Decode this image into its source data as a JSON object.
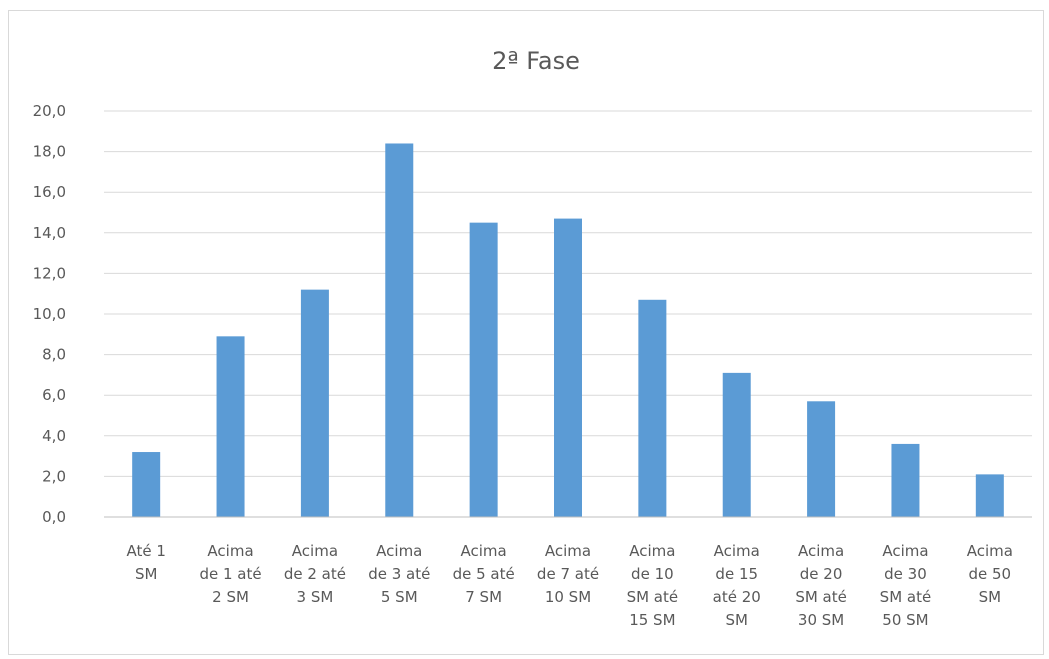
{
  "chart_data": {
    "type": "bar",
    "title": "2ª Fase",
    "xlabel": "",
    "ylabel": "",
    "ylim": [
      0,
      20
    ],
    "yticks": [
      "0,0",
      "2,0",
      "4,0",
      "6,0",
      "8,0",
      "10,0",
      "12,0",
      "14,0",
      "16,0",
      "18,0",
      "20,0"
    ],
    "grid": true,
    "legend": "none",
    "bar_color": "#5b9bd5",
    "categories": [
      [
        "Até 1",
        "SM"
      ],
      [
        "Acima",
        "de 1 até",
        "2 SM"
      ],
      [
        "Acima",
        "de 2 até",
        "3 SM"
      ],
      [
        "Acima",
        "de 3 até",
        "5 SM"
      ],
      [
        "Acima",
        "de 5 até",
        "7 SM"
      ],
      [
        "Acima",
        "de 7 até",
        "10 SM"
      ],
      [
        "Acima",
        "de 10",
        "SM até",
        "15 SM"
      ],
      [
        "Acima",
        "de 15",
        "até 20",
        "SM"
      ],
      [
        "Acima",
        "de 20",
        "SM até",
        "30 SM"
      ],
      [
        "Acima",
        "de 30",
        "SM até",
        "50 SM"
      ],
      [
        "Acima",
        "de 50",
        "SM"
      ]
    ],
    "values": [
      3.2,
      8.9,
      11.2,
      18.4,
      14.5,
      14.7,
      10.7,
      7.1,
      5.7,
      3.6,
      2.1
    ]
  }
}
